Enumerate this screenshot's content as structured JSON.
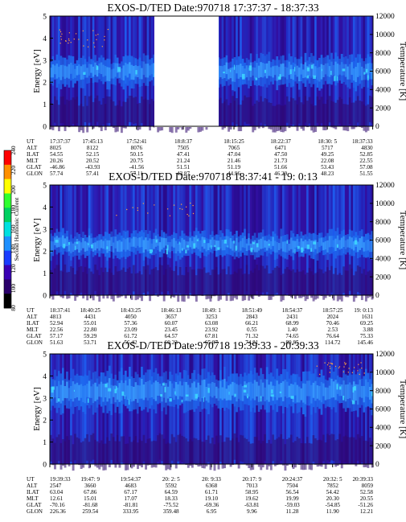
{
  "colorbar": {
    "label": "Second Harmonic Current",
    "ticks": [
      "80",
      "100",
      "120",
      "140",
      "160",
      "180",
      "200",
      "220",
      "240"
    ],
    "range": [
      80,
      240
    ],
    "colors": [
      "#000000",
      "#2a006a",
      "#3a00b4",
      "#1a3cff",
      "#1e90ff",
      "#00e0e0",
      "#00d060",
      "#30ff30",
      "#ffff00",
      "#ff9000",
      "#ff0000"
    ]
  },
  "chart_data": [
    {
      "type": "heatmap",
      "title": "EXOS-D/TED   Date:970718   17:37:37 - 18:37:33",
      "ylabel": "Energy [eV]",
      "y2label": "Temperature [K]",
      "ylim": [
        0,
        5
      ],
      "y2lim": [
        0,
        12000
      ],
      "yticks": [
        "0",
        "1",
        "2",
        "3",
        "4",
        "5"
      ],
      "y2ticks": [
        "0",
        "2000",
        "4000",
        "6000",
        "8000",
        "10000",
        "12000"
      ],
      "data_gap": [
        "17:52:41",
        "18:8:37"
      ],
      "band": {
        "energy_center": 2.5,
        "energy_halfwidth": 0.6
      },
      "ephemeris": {
        "rows": [
          "UT",
          "ALT",
          "ILAT",
          "MLT",
          "GLAT",
          "GLON"
        ],
        "columns": [
          [
            "17:37:37",
            "8025",
            "54.55",
            "20.26",
            "-46.86",
            "57.74"
          ],
          [
            "17:45:13",
            "8122",
            "52.15",
            "20.52",
            "-43.93",
            "57.41"
          ],
          [
            "17:52:41",
            "8076",
            "50.15",
            "20.75",
            "-41.56",
            "57.11"
          ],
          [
            "18:8:37",
            "7505",
            "47.41",
            "21.24",
            "51.51",
            "43.87"
          ],
          [
            "18:15:25",
            "7065",
            "47.04",
            "21.46",
            "51.19",
            "44.96"
          ],
          [
            "18:22:37",
            "6471",
            "47.50",
            "21.73",
            "51.66",
            "46.29"
          ],
          [
            "18:30: 5",
            "5717",
            "49.25",
            "22.08",
            "53.43",
            "48.23"
          ],
          [
            "18:37:33",
            "4830",
            "52.85",
            "22.55",
            "57.08",
            "51.55"
          ]
        ]
      }
    },
    {
      "type": "heatmap",
      "title": "EXOS-D/TED   Date:970718   18:37:41 - 19: 0:13",
      "ylabel": "Energy [eV]",
      "y2label": "Temperature [K]",
      "ylim": [
        0,
        5
      ],
      "y2lim": [
        0,
        12000
      ],
      "yticks": [
        "0",
        "1",
        "2",
        "3",
        "4",
        "5"
      ],
      "y2ticks": [
        "0",
        "2000",
        "4000",
        "6000",
        "8000",
        "10000",
        "12000"
      ],
      "band": {
        "energy_center": 2.3,
        "energy_halfwidth": 0.5
      },
      "ephemeris": {
        "rows": [
          "UT",
          "ALT",
          "ILAT",
          "MLT",
          "GLAT",
          "GLON"
        ],
        "columns": [
          [
            "18:37:41",
            "4813",
            "52.94",
            "22.56",
            "57.17",
            "51.63"
          ],
          [
            "18:40:25",
            "4431",
            "55.01",
            "22.80",
            "59.29",
            "53.71"
          ],
          [
            "18:43:25",
            "4050",
            "57.36",
            "23.09",
            "61.72",
            "56.42"
          ],
          [
            "18:46:13",
            "3657",
            "60.07",
            "23.45",
            "64.57",
            "60.23"
          ],
          [
            "18:49: 1",
            "3253",
            "63.08",
            "23.92",
            "67.81",
            "65.87"
          ],
          [
            "18:51:49",
            "2843",
            "66.21",
            "0.55",
            "71.32",
            "74.81"
          ],
          [
            "18:54:37",
            "2431",
            "68.99",
            "1.40",
            "74.65",
            "89.85"
          ],
          [
            "18:57:25",
            "2024",
            "70.46",
            "2.53",
            "76.64",
            "114.72"
          ],
          [
            "19: 0:13",
            "1631",
            "69.25",
            "3.88",
            "75.33",
            "145.46"
          ]
        ]
      }
    },
    {
      "type": "heatmap",
      "title": "EXOS-D/TED   Date:970718   19:39:33 - 20:39:33",
      "ylabel": "Energy [eV]",
      "y2label": "Temperature [K]",
      "ylim": [
        0,
        5
      ],
      "y2lim": [
        0,
        12000
      ],
      "yticks": [
        "0",
        "1",
        "2",
        "3",
        "4",
        "5"
      ],
      "y2ticks": [
        "0",
        "2000",
        "4000",
        "6000",
        "8000",
        "10000",
        "12000"
      ],
      "band": {
        "energy_center": 3.3,
        "energy_halfwidth": 0.8
      },
      "ephemeris": {
        "rows": [
          "UT",
          "ALT",
          "ILAT",
          "MLT",
          "GLAT",
          "GLON"
        ],
        "columns": [
          [
            "19:39:33",
            "2547",
            "63.04",
            "12.61",
            "-70.16",
            "226.36"
          ],
          [
            "19:47: 9",
            "3660",
            "67.86",
            "15.01",
            "-81.68",
            "259.54"
          ],
          [
            "19:54:37",
            "4683",
            "67.17",
            "17.07",
            "-81.81",
            "333.95"
          ],
          [
            "20: 2: 5",
            "5592",
            "64.59",
            "18.33",
            "-75.52",
            "359.48"
          ],
          [
            "20: 9:33",
            "6368",
            "61.71",
            "19.10",
            "-69.36",
            "6.95"
          ],
          [
            "20:17: 9",
            "7013",
            "58.95",
            "19.62",
            "-63.81",
            "9.96"
          ],
          [
            "20:24:37",
            "7504",
            "56.54",
            "19.99",
            "-59.03",
            "11.28"
          ],
          [
            "20:32: 5",
            "7852",
            "54.42",
            "20.30",
            "-54.85",
            "11.90"
          ],
          [
            "20:39:33",
            "8059",
            "52.58",
            "20.55",
            "-51.26",
            "12.21"
          ]
        ]
      }
    }
  ]
}
